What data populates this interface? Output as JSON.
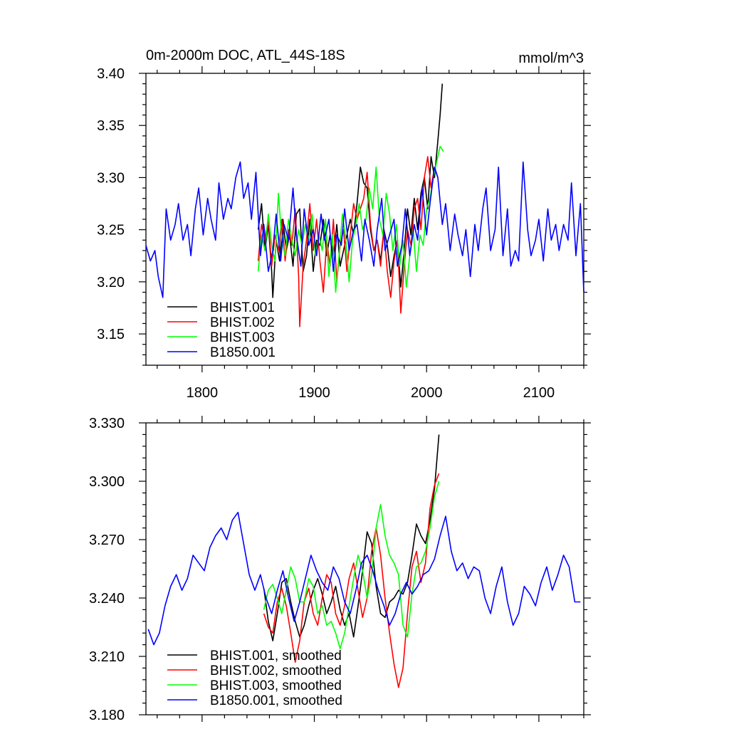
{
  "page_title": "0m-2000m DOC, ATL_44S-18S",
  "colors": {
    "BHIST.001": "#000000",
    "BHIST.002": "#ff0000",
    "BHIST.003": "#00ff00",
    "B1850.001": "#0000ff"
  },
  "chart_data": [
    {
      "type": "line",
      "title": "0m-2000m DOC, ATL_44S-18S",
      "units": "mmol/m^3",
      "xlabel": "",
      "ylabel": "",
      "xlim": [
        1750,
        2140
      ],
      "ylim": [
        3.12,
        3.4
      ],
      "xticks": [
        1800,
        1900,
        2000,
        2100
      ],
      "xtick_labels": [
        "1800",
        "1900",
        "2000",
        "2100"
      ],
      "yticks": [
        3.15,
        3.2,
        3.25,
        3.3,
        3.35,
        3.4
      ],
      "ytick_labels": [
        "3.15",
        "3.20",
        "3.25",
        "3.30",
        "3.35",
        "3.40"
      ],
      "legend_position": "bottom-left",
      "series": [
        {
          "name": "BHIST.001",
          "x": [
            1850,
            1853,
            1856,
            1859,
            1862,
            1863,
            1866,
            1869,
            1872,
            1875,
            1878,
            1881,
            1884,
            1887,
            1890,
            1893,
            1896,
            1899,
            1902,
            1905,
            1908,
            1911,
            1914,
            1917,
            1920,
            1923,
            1926,
            1929,
            1932,
            1935,
            1938,
            1941,
            1944,
            1947,
            1950,
            1953,
            1956,
            1959,
            1962,
            1965,
            1968,
            1971,
            1974,
            1977,
            1980,
            1983,
            1986,
            1989,
            1992,
            1995,
            1998,
            2001,
            2004,
            2007,
            2010,
            2012,
            2014
          ],
          "values": [
            3.25,
            3.275,
            3.23,
            3.255,
            3.21,
            3.185,
            3.24,
            3.22,
            3.26,
            3.23,
            3.245,
            3.215,
            3.265,
            3.27,
            3.21,
            3.225,
            3.26,
            3.21,
            3.24,
            3.235,
            3.26,
            3.225,
            3.245,
            3.225,
            3.255,
            3.215,
            3.23,
            3.245,
            3.26,
            3.245,
            3.275,
            3.31,
            3.295,
            3.29,
            3.25,
            3.23,
            3.24,
            3.22,
            3.25,
            3.235,
            3.205,
            3.225,
            3.24,
            3.195,
            3.23,
            3.27,
            3.245,
            3.28,
            3.25,
            3.285,
            3.3,
            3.27,
            3.32,
            3.3,
            3.335,
            3.36,
            3.39
          ]
        },
        {
          "name": "BHIST.002",
          "x": [
            1850,
            1853,
            1856,
            1859,
            1862,
            1865,
            1868,
            1871,
            1874,
            1877,
            1880,
            1883,
            1886,
            1887,
            1890,
            1893,
            1896,
            1899,
            1902,
            1905,
            1908,
            1911,
            1914,
            1917,
            1920,
            1923,
            1926,
            1929,
            1932,
            1935,
            1938,
            1941,
            1944,
            1947,
            1950,
            1953,
            1956,
            1959,
            1962,
            1965,
            1968,
            1971,
            1974,
            1977,
            1980,
            1983,
            1986,
            1989,
            1992,
            1995,
            1998,
            2001,
            2004,
            2007,
            2010
          ],
          "values": [
            3.22,
            3.255,
            3.24,
            3.26,
            3.215,
            3.245,
            3.23,
            3.26,
            3.22,
            3.25,
            3.235,
            3.27,
            3.205,
            3.157,
            3.215,
            3.24,
            3.275,
            3.23,
            3.26,
            3.22,
            3.19,
            3.24,
            3.215,
            3.26,
            3.2,
            3.235,
            3.25,
            3.21,
            3.245,
            3.275,
            3.26,
            3.27,
            3.28,
            3.305,
            3.255,
            3.23,
            3.24,
            3.215,
            3.25,
            3.21,
            3.185,
            3.22,
            3.24,
            3.17,
            3.215,
            3.25,
            3.235,
            3.27,
            3.28,
            3.25,
            3.3,
            3.32,
            3.29,
            3.31,
            3.3
          ]
        },
        {
          "name": "BHIST.003",
          "x": [
            1850,
            1853,
            1856,
            1859,
            1862,
            1865,
            1868,
            1871,
            1874,
            1877,
            1880,
            1883,
            1886,
            1889,
            1892,
            1895,
            1898,
            1901,
            1904,
            1907,
            1910,
            1913,
            1916,
            1919,
            1922,
            1925,
            1928,
            1931,
            1934,
            1937,
            1940,
            1943,
            1946,
            1949,
            1952,
            1955,
            1958,
            1961,
            1964,
            1967,
            1970,
            1973,
            1976,
            1979,
            1982,
            1985,
            1988,
            1991,
            1994,
            1997,
            2000,
            2003,
            2006,
            2009,
            2012,
            2015
          ],
          "values": [
            3.21,
            3.245,
            3.23,
            3.265,
            3.235,
            3.22,
            3.285,
            3.24,
            3.225,
            3.26,
            3.24,
            3.225,
            3.25,
            3.235,
            3.255,
            3.24,
            3.265,
            3.225,
            3.245,
            3.23,
            3.26,
            3.205,
            3.245,
            3.19,
            3.225,
            3.265,
            3.24,
            3.2,
            3.24,
            3.255,
            3.275,
            3.25,
            3.26,
            3.29,
            3.27,
            3.31,
            3.26,
            3.245,
            3.285,
            3.265,
            3.23,
            3.255,
            3.215,
            3.24,
            3.195,
            3.225,
            3.25,
            3.21,
            3.245,
            3.235,
            3.27,
            3.28,
            3.3,
            3.315,
            3.33,
            3.325
          ]
        },
        {
          "name": "B1850.001",
          "x": [
            1750,
            1754,
            1758,
            1761,
            1765,
            1768,
            1772,
            1776,
            1779,
            1783,
            1787,
            1790,
            1794,
            1797,
            1801,
            1805,
            1808,
            1812,
            1815,
            1819,
            1823,
            1826,
            1830,
            1834,
            1837,
            1841,
            1844,
            1848,
            1852,
            1855,
            1859,
            1863,
            1866,
            1870,
            1873,
            1877,
            1881,
            1884,
            1888,
            1891,
            1895,
            1899,
            1902,
            1906,
            1909,
            1913,
            1917,
            1920,
            1924,
            1927,
            1931,
            1935,
            1938,
            1942,
            1945,
            1949,
            1953,
            1956,
            1960,
            1963,
            1967,
            1971,
            1974,
            1978,
            1981,
            1985,
            1989,
            1992,
            1996,
            2000,
            2003,
            2007,
            2010,
            2014,
            2017,
            2021,
            2025,
            2028,
            2032,
            2035,
            2039,
            2043,
            2046,
            2050,
            2053,
            2057,
            2061,
            2064,
            2068,
            2072,
            2075,
            2079,
            2082,
            2086,
            2090,
            2093,
            2097,
            2100,
            2104,
            2108,
            2111,
            2115,
            2118,
            2122,
            2126,
            2129,
            2133,
            2137,
            2140
          ],
          "values": [
            3.235,
            3.22,
            3.23,
            3.205,
            3.185,
            3.27,
            3.24,
            3.255,
            3.275,
            3.24,
            3.255,
            3.225,
            3.27,
            3.29,
            3.245,
            3.28,
            3.26,
            3.24,
            3.295,
            3.26,
            3.28,
            3.27,
            3.3,
            3.315,
            3.28,
            3.295,
            3.26,
            3.305,
            3.225,
            3.255,
            3.21,
            3.23,
            3.265,
            3.22,
            3.255,
            3.24,
            3.29,
            3.245,
            3.215,
            3.27,
            3.235,
            3.25,
            3.225,
            3.265,
            3.24,
            3.26,
            3.21,
            3.245,
            3.235,
            3.27,
            3.23,
            3.25,
            3.255,
            3.22,
            3.26,
            3.24,
            3.215,
            3.25,
            3.28,
            3.23,
            3.245,
            3.26,
            3.215,
            3.235,
            3.27,
            3.225,
            3.255,
            3.24,
            3.29,
            3.245,
            3.275,
            3.31,
            3.3,
            3.255,
            3.275,
            3.23,
            3.265,
            3.245,
            3.225,
            3.25,
            3.205,
            3.255,
            3.23,
            3.27,
            3.29,
            3.23,
            3.25,
            3.31,
            3.225,
            3.27,
            3.215,
            3.23,
            3.22,
            3.315,
            3.25,
            3.225,
            3.24,
            3.26,
            3.22,
            3.27,
            3.24,
            3.255,
            3.23,
            3.255,
            3.24,
            3.295,
            3.225,
            3.275,
            3.19
          ]
        }
      ]
    },
    {
      "type": "line",
      "title": "",
      "xlabel": "",
      "ylabel": "",
      "xlim": [
        1750,
        2140
      ],
      "ylim": [
        3.18,
        3.33
      ],
      "xticks": [
        1800,
        1900,
        2000,
        2100
      ],
      "yticks": [
        3.18,
        3.21,
        3.24,
        3.27,
        3.3,
        3.33
      ],
      "ytick_labels": [
        "3.180",
        "3.210",
        "3.240",
        "3.270",
        "3.300",
        "3.330"
      ],
      "legend_position": "bottom-left",
      "series": [
        {
          "name": "BHIST.001, smoothed",
          "x": [
            1855,
            1859,
            1863,
            1867,
            1871,
            1875,
            1879,
            1883,
            1887,
            1891,
            1895,
            1899,
            1903,
            1907,
            1911,
            1915,
            1919,
            1923,
            1927,
            1931,
            1935,
            1939,
            1943,
            1947,
            1951,
            1955,
            1959,
            1963,
            1967,
            1971,
            1975,
            1979,
            1983,
            1987,
            1991,
            1995,
            1999,
            2003,
            2007,
            2011
          ],
          "values": [
            3.245,
            3.228,
            3.218,
            3.232,
            3.248,
            3.25,
            3.238,
            3.228,
            3.22,
            3.226,
            3.236,
            3.244,
            3.25,
            3.242,
            3.232,
            3.238,
            3.246,
            3.234,
            3.226,
            3.232,
            3.22,
            3.236,
            3.254,
            3.274,
            3.268,
            3.246,
            3.232,
            3.23,
            3.238,
            3.24,
            3.244,
            3.242,
            3.248,
            3.262,
            3.278,
            3.272,
            3.268,
            3.28,
            3.296,
            3.324
          ]
        },
        {
          "name": "BHIST.002, smoothed",
          "x": [
            1855,
            1859,
            1863,
            1867,
            1871,
            1875,
            1879,
            1883,
            1887,
            1891,
            1895,
            1899,
            1903,
            1907,
            1911,
            1915,
            1919,
            1923,
            1927,
            1931,
            1935,
            1939,
            1943,
            1947,
            1951,
            1955,
            1959,
            1963,
            1967,
            1971,
            1975,
            1979,
            1983,
            1987,
            1991,
            1995,
            1999,
            2003,
            2007,
            2011
          ],
          "values": [
            3.232,
            3.225,
            3.222,
            3.238,
            3.245,
            3.236,
            3.222,
            3.207,
            3.218,
            3.238,
            3.245,
            3.232,
            3.226,
            3.24,
            3.252,
            3.248,
            3.232,
            3.226,
            3.236,
            3.25,
            3.258,
            3.244,
            3.23,
            3.24,
            3.264,
            3.276,
            3.262,
            3.24,
            3.222,
            3.206,
            3.194,
            3.204,
            3.232,
            3.256,
            3.264,
            3.248,
            3.258,
            3.286,
            3.298,
            3.304
          ]
        },
        {
          "name": "BHIST.003, smoothed",
          "x": [
            1855,
            1859,
            1863,
            1867,
            1871,
            1875,
            1879,
            1883,
            1887,
            1891,
            1895,
            1899,
            1903,
            1907,
            1911,
            1915,
            1919,
            1923,
            1927,
            1931,
            1935,
            1939,
            1943,
            1947,
            1951,
            1955,
            1959,
            1963,
            1967,
            1971,
            1975,
            1979,
            1983,
            1987,
            1991,
            1995,
            1999,
            2003,
            2007,
            2011
          ],
          "values": [
            3.234,
            3.244,
            3.247,
            3.24,
            3.232,
            3.244,
            3.256,
            3.25,
            3.238,
            3.238,
            3.25,
            3.246,
            3.232,
            3.236,
            3.226,
            3.228,
            3.222,
            3.214,
            3.222,
            3.236,
            3.25,
            3.262,
            3.254,
            3.24,
            3.252,
            3.276,
            3.288,
            3.272,
            3.262,
            3.258,
            3.252,
            3.226,
            3.22,
            3.242,
            3.256,
            3.258,
            3.264,
            3.276,
            3.292,
            3.3
          ]
        },
        {
          "name": "B1850.001, smoothed",
          "x": [
            1752,
            1757,
            1762,
            1767,
            1772,
            1777,
            1782,
            1787,
            1792,
            1797,
            1802,
            1807,
            1812,
            1817,
            1822,
            1827,
            1832,
            1837,
            1842,
            1847,
            1852,
            1857,
            1862,
            1867,
            1872,
            1877,
            1882,
            1887,
            1892,
            1897,
            1902,
            1907,
            1912,
            1917,
            1922,
            1927,
            1932,
            1937,
            1942,
            1947,
            1952,
            1957,
            1962,
            1967,
            1972,
            1977,
            1982,
            1987,
            1992,
            1997,
            2002,
            2007,
            2012,
            2017,
            2022,
            2027,
            2032,
            2037,
            2042,
            2047,
            2052,
            2057,
            2062,
            2067,
            2072,
            2077,
            2082,
            2087,
            2092,
            2097,
            2102,
            2107,
            2112,
            2117,
            2122,
            2127,
            2132,
            2137
          ],
          "values": [
            3.224,
            3.216,
            3.222,
            3.236,
            3.246,
            3.252,
            3.244,
            3.25,
            3.262,
            3.258,
            3.254,
            3.266,
            3.272,
            3.276,
            3.27,
            3.28,
            3.284,
            3.268,
            3.252,
            3.244,
            3.252,
            3.24,
            3.232,
            3.244,
            3.254,
            3.24,
            3.228,
            3.238,
            3.25,
            3.262,
            3.254,
            3.248,
            3.244,
            3.256,
            3.25,
            3.238,
            3.232,
            3.244,
            3.258,
            3.262,
            3.254,
            3.244,
            3.236,
            3.226,
            3.232,
            3.242,
            3.248,
            3.242,
            3.246,
            3.252,
            3.254,
            3.26,
            3.272,
            3.282,
            3.264,
            3.254,
            3.258,
            3.25,
            3.256,
            3.254,
            3.24,
            3.232,
            3.246,
            3.256,
            3.238,
            3.226,
            3.232,
            3.246,
            3.242,
            3.236,
            3.248,
            3.256,
            3.244,
            3.252,
            3.262,
            3.256,
            3.238,
            3.238
          ]
        }
      ]
    }
  ]
}
